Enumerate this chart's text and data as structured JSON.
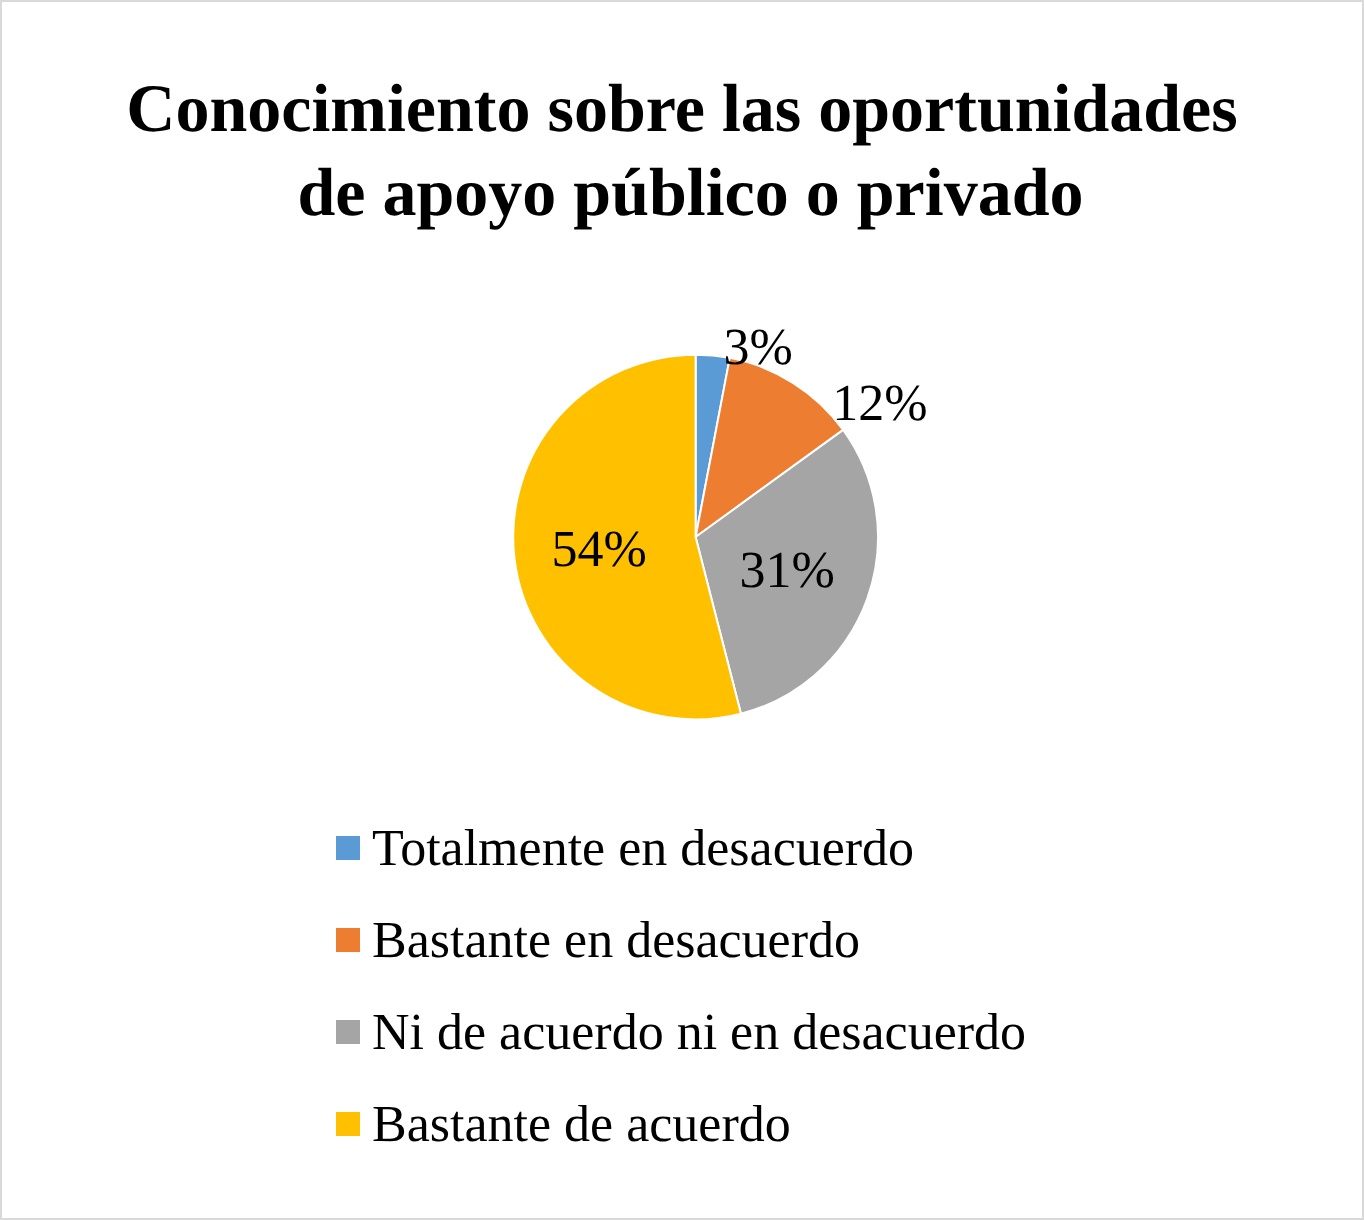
{
  "chart_data": {
    "type": "pie",
    "title": "Conocimiento sobre las oportunidades de apoyo público o privado",
    "categories": [
      "Totalmente en desacuerdo",
      "Bastante en desacuerdo",
      "Ni de acuerdo ni en desacuerdo",
      "Bastante de acuerdo"
    ],
    "values": [
      3,
      12,
      31,
      54
    ],
    "colors": [
      "#5b9bd5",
      "#ed7d31",
      "#a5a5a5",
      "#ffc000"
    ],
    "value_labels": [
      "3%",
      "12%",
      "31%",
      "54%"
    ],
    "legend": "bottom"
  }
}
